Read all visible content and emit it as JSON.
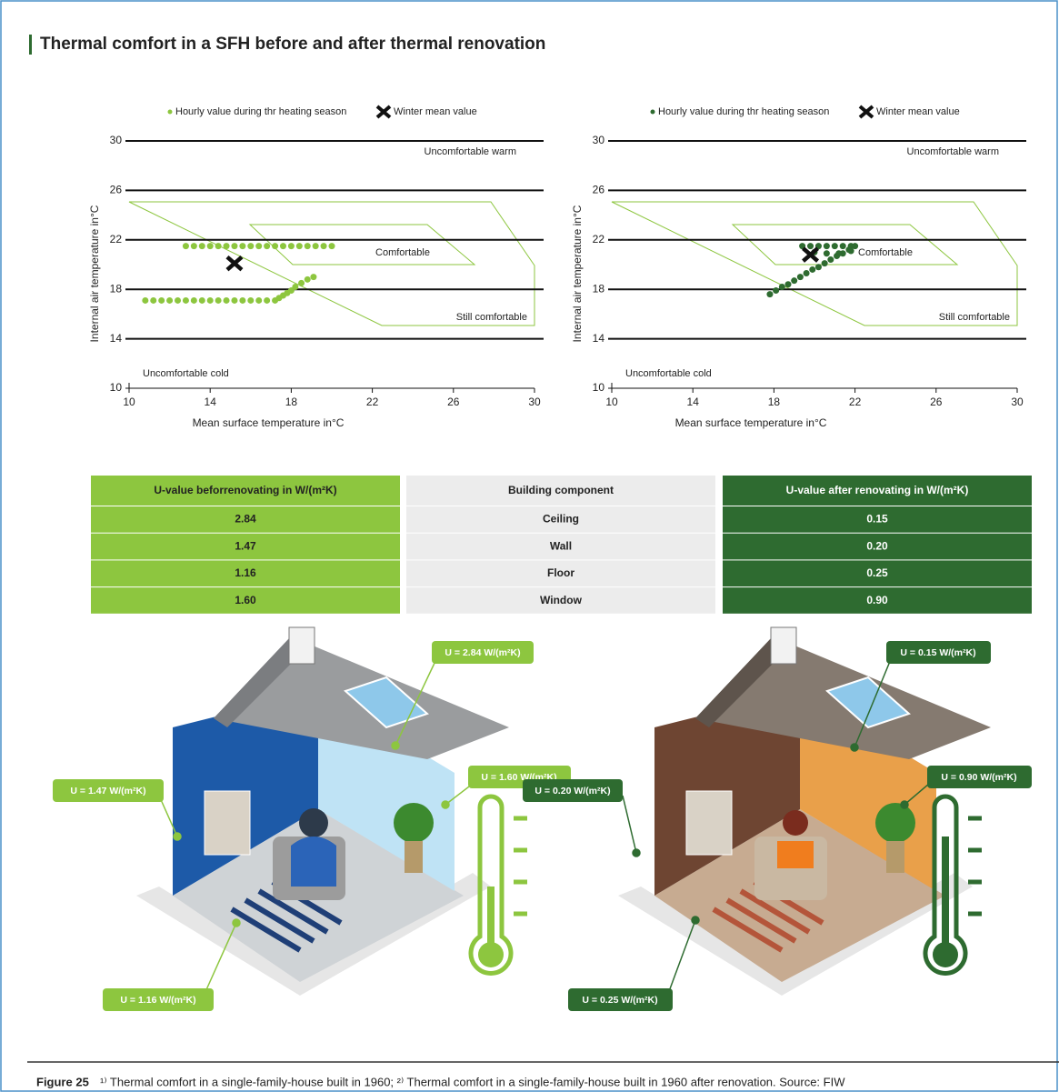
{
  "title": "Thermal comfort in a SFH before and after thermal renovation",
  "chart_data": [
    {
      "type": "scatter",
      "xlabel": "Mean surface temperature in°C",
      "ylabel": "Internal air temperature in°C",
      "xlim": [
        10,
        30
      ],
      "ylim": [
        10,
        30
      ],
      "xticks": [
        10,
        14,
        18,
        22,
        26,
        30
      ],
      "yticks": [
        10,
        14,
        18,
        22,
        26,
        30
      ],
      "grid": true,
      "series": [
        {
          "name": "Hourly value during thr heating season",
          "color": "#8dc63f",
          "marker": "circle",
          "x": [
            12.8,
            13.2,
            13.6,
            14.0,
            14.4,
            14.8,
            15.2,
            15.6,
            16.0,
            16.4,
            16.8,
            17.2,
            17.6,
            18.0,
            18.4,
            18.8,
            19.2,
            19.6,
            20.0,
            10.8,
            11.2,
            11.6,
            12.0,
            12.4,
            12.8,
            13.2,
            13.6,
            14.0,
            14.4,
            14.8,
            15.2,
            15.6,
            16.0,
            16.4,
            16.8,
            17.2,
            17.4,
            17.6,
            17.8,
            18.0,
            18.2,
            18.5,
            18.8,
            19.1
          ],
          "y": [
            21.5,
            21.5,
            21.5,
            21.5,
            21.5,
            21.5,
            21.5,
            21.5,
            21.5,
            21.5,
            21.5,
            21.5,
            21.5,
            21.5,
            21.5,
            21.5,
            21.5,
            21.5,
            21.5,
            17.1,
            17.1,
            17.1,
            17.1,
            17.1,
            17.1,
            17.1,
            17.1,
            17.1,
            17.1,
            17.1,
            17.1,
            17.1,
            17.1,
            17.1,
            17.1,
            17.1,
            17.3,
            17.5,
            17.7,
            17.9,
            18.2,
            18.5,
            18.8,
            19.0
          ]
        },
        {
          "name": "Winter mean value",
          "color": "#111111",
          "marker": "x",
          "x": [
            15.2
          ],
          "y": [
            20.1
          ]
        }
      ],
      "annotations": [
        "Uncomfortable warm",
        "Comfortable",
        "Still comfortable",
        "Uncomfortable cold"
      ]
    },
    {
      "type": "scatter",
      "xlabel": "Mean surface temperature in°C",
      "ylabel": "Internal air temperature in°C",
      "xlim": [
        10,
        30
      ],
      "ylim": [
        10,
        30
      ],
      "xticks": [
        10,
        14,
        18,
        22,
        26,
        30
      ],
      "yticks": [
        10,
        14,
        18,
        22,
        26,
        30
      ],
      "grid": true,
      "series": [
        {
          "name": "Hourly value during thr heating season",
          "color": "#2e6b30",
          "marker": "circle",
          "x": [
            17.8,
            18.1,
            18.4,
            18.7,
            19.0,
            19.3,
            19.6,
            19.9,
            20.2,
            20.5,
            20.8,
            21.1,
            21.4,
            21.7,
            22.0,
            19.4,
            19.8,
            20.2,
            20.6,
            21.0,
            21.4,
            21.8,
            20.0,
            20.6,
            21.2,
            21.8
          ],
          "y": [
            17.6,
            17.9,
            18.2,
            18.4,
            18.7,
            19.0,
            19.3,
            19.6,
            19.8,
            20.1,
            20.4,
            20.7,
            20.9,
            21.2,
            21.5,
            21.5,
            21.5,
            21.5,
            21.5,
            21.5,
            21.5,
            21.5,
            21.0,
            20.9,
            20.9,
            21.1
          ]
        },
        {
          "name": "Winter mean value",
          "color": "#111111",
          "marker": "x",
          "x": [
            19.8
          ],
          "y": [
            20.8
          ]
        }
      ],
      "annotations": [
        "Uncomfortable warm",
        "Comfortable",
        "Still comfortable",
        "Uncomfortable cold"
      ]
    }
  ],
  "table": {
    "header": [
      "U-value beforrenovating in W/(m²K)",
      "Building component",
      "U-value after renovating in W/(m²K)"
    ],
    "rows": [
      [
        "2.84",
        "Ceiling",
        "0.15"
      ],
      [
        "1.47",
        "Wall",
        "0.20"
      ],
      [
        "1.16",
        "Floor",
        "0.25"
      ],
      [
        "1.60",
        "Window",
        "0.90"
      ]
    ],
    "colors": [
      "#8dc63f",
      "#ececec",
      "#2e6b30"
    ]
  },
  "illustrations": {
    "before": {
      "labels": [
        "U = 2.84 W/(m²K)",
        "U = 1.60 W/(m²K)",
        "U = 1.47 W/(m²K)",
        "U = 1.16 W/(m²K)"
      ]
    },
    "after": {
      "labels": [
        "U = 0.15 W/(m²K)",
        "U = 0.90 W/(m²K)",
        "U = 0.20 W/(m²K)",
        "U = 0.25 W/(m²K)"
      ]
    }
  },
  "footer": {
    "figure": "Figure 25",
    "caption": "¹⁾ Thermal comfort in a single-family-house built in 1960; ²⁾ Thermal comfort in a single-family-house built in 1960 after renovation. Source: FIW"
  }
}
